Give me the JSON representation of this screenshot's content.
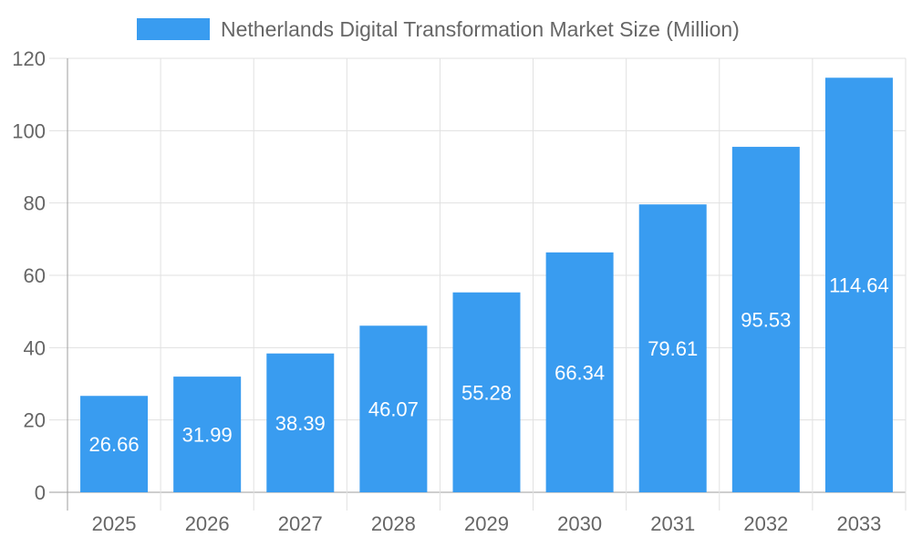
{
  "chart_data": {
    "type": "bar",
    "title": "",
    "xlabel": "",
    "ylabel": "",
    "categories": [
      "2025",
      "2026",
      "2027",
      "2028",
      "2029",
      "2030",
      "2031",
      "2032",
      "2033"
    ],
    "series": [
      {
        "name": "Netherlands Digital Transformation Market Size (Million)",
        "values": [
          26.66,
          31.99,
          38.39,
          46.07,
          55.28,
          66.34,
          79.61,
          95.53,
          114.64
        ]
      }
    ],
    "ylim": [
      0,
      120
    ],
    "yticks": [
      0,
      20,
      40,
      60,
      80,
      100,
      120
    ],
    "grid": true,
    "legend_position": "top",
    "data_labels": "inside-center",
    "colors": {
      "bar": "#399CF0",
      "grid": "#e1e1e1",
      "axis": "#9e9e9e",
      "text": "#666666",
      "label": "#ffffff"
    }
  }
}
